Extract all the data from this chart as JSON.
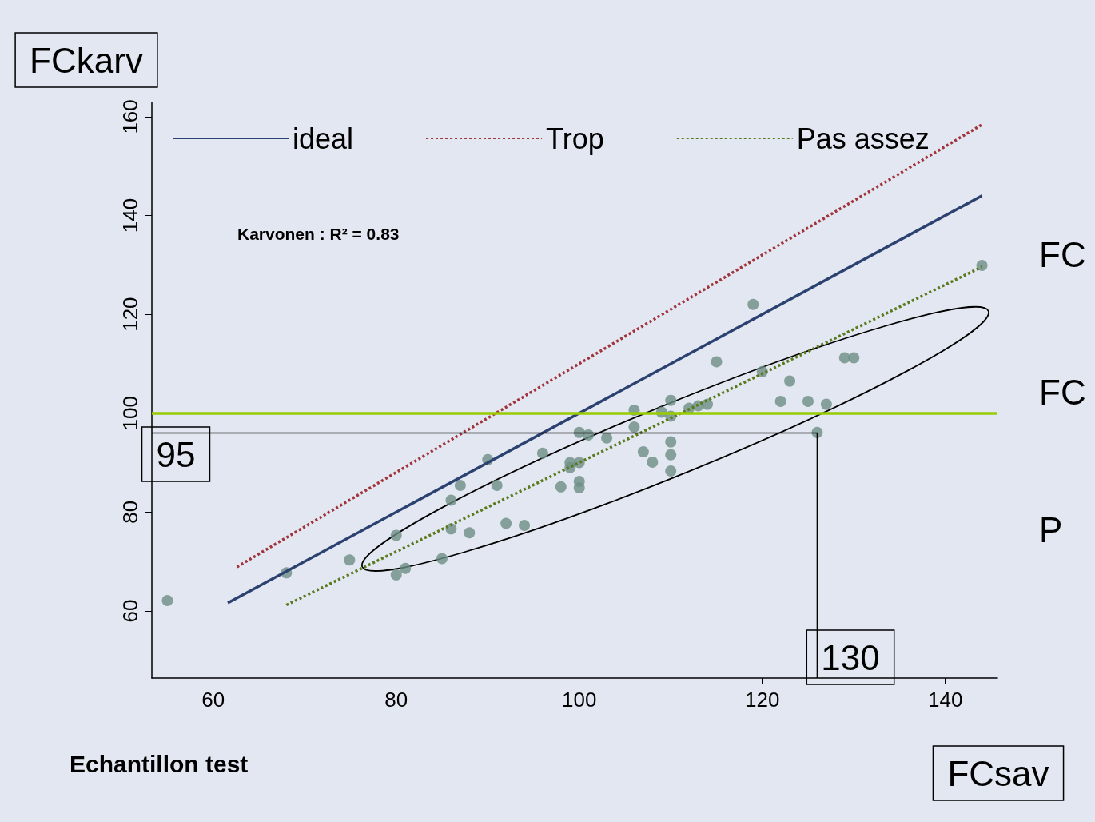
{
  "chart_data": {
    "type": "scatter",
    "xlabel": "FCsav",
    "ylabel": "FCkarv",
    "xlim": [
      53.3,
      145.7
    ],
    "ylim": [
      46.4,
      162.9
    ],
    "xticks": [
      60,
      80,
      100,
      120,
      140
    ],
    "yticks": [
      60,
      80,
      100,
      120,
      140,
      160
    ],
    "grid": false,
    "legend": "top",
    "series": [
      {
        "marker": "circle",
        "color": "#6d8f86",
        "x": [
          55,
          68,
          74.9,
          80,
          80,
          81,
          85,
          86,
          86,
          87,
          88,
          90,
          91,
          92,
          94,
          96,
          98,
          99,
          99,
          100,
          100,
          100,
          100,
          101,
          103,
          106,
          106,
          107,
          108,
          109,
          110,
          110,
          110,
          110,
          110,
          112,
          113,
          114,
          115,
          119,
          120,
          122,
          123,
          125,
          126,
          127,
          129,
          130,
          144
        ],
        "values": [
          62.1,
          67.7,
          70.3,
          75.3,
          67.3,
          68.6,
          70.6,
          76.6,
          82.4,
          85.4,
          75.8,
          90.6,
          85.4,
          77.7,
          77.3,
          91.9,
          85.1,
          89,
          90,
          90,
          96.1,
          86.2,
          84.9,
          95.6,
          95,
          100.6,
          97.2,
          92.2,
          90.1,
          100.2,
          102.6,
          99.4,
          94.2,
          91.6,
          88.3,
          101,
          101.5,
          101.8,
          110.4,
          122,
          108.4,
          102.4,
          106.5,
          102.4,
          96.1,
          101.8,
          111.2,
          111.2,
          129.9
        ]
      },
      {
        "type": "line",
        "name": "ideal",
        "color": "#2b4170",
        "marker": "none",
        "line_style": "solid",
        "x": [
          61.6,
          144
        ],
        "values": [
          61.6,
          144
        ]
      },
      {
        "type": "line",
        "name": "Trop",
        "color": "#a0343c",
        "marker": "none",
        "line_style": "dotted",
        "x": [
          62.6,
          144.1
        ],
        "values": [
          68.9,
          158.5
        ]
      },
      {
        "type": "line",
        "name": "Pas assez",
        "color": "#5a7a1e",
        "marker": "none",
        "line_style": "dotted",
        "x": [
          68,
          144
        ],
        "values": [
          61.2,
          129.6
        ]
      },
      {
        "type": "line",
        "color": "#000000",
        "marker": "none",
        "line_style": "solid",
        "x": [
          53.3,
          126,
          126
        ],
        "values": [
          96,
          96,
          46.4
        ]
      }
    ],
    "ref_lines": [
      {
        "axis": "y",
        "value": 100,
        "color": "#99cc00"
      }
    ],
    "annotations": [
      "Karvonen : R² = 0.83",
      "Echantillon test",
      "FC",
      "FC",
      "P",
      "95",
      "130"
    ]
  }
}
